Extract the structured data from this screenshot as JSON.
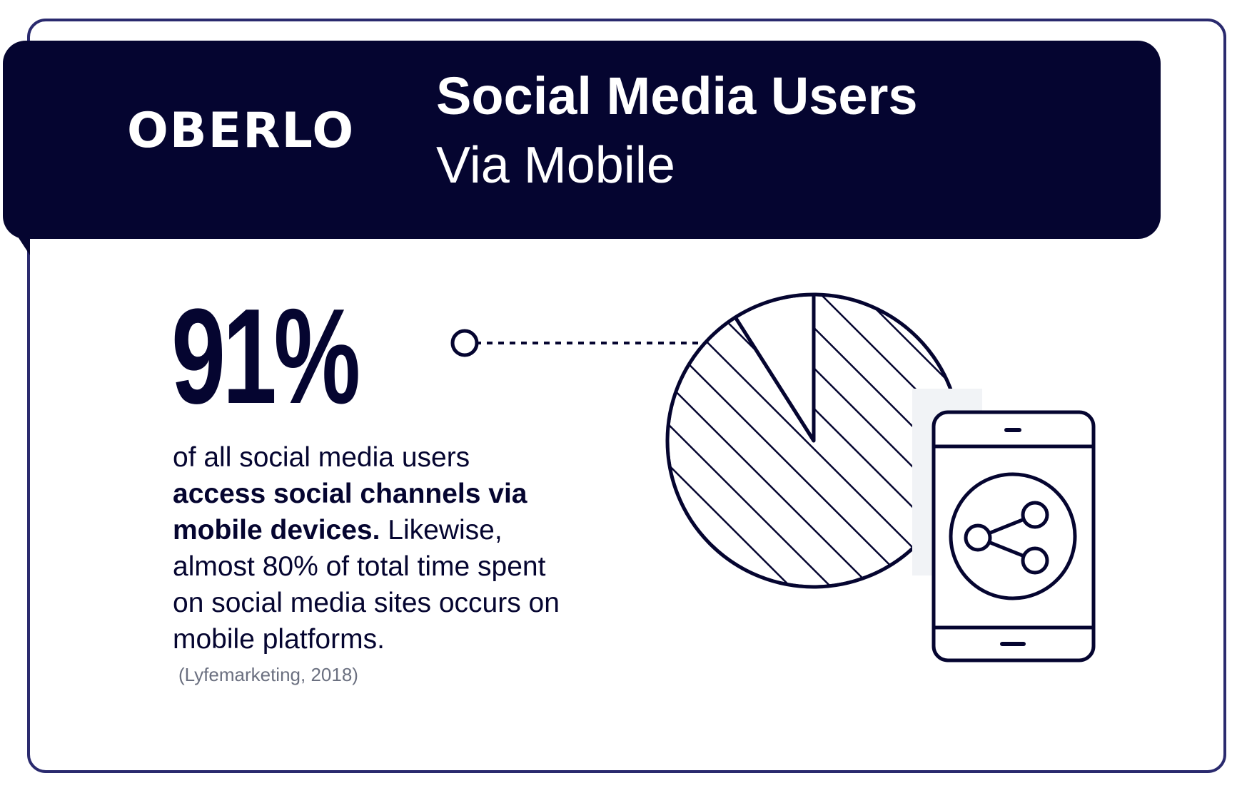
{
  "header": {
    "logo": "OBERLO",
    "title": "Social Media Users",
    "subtitle": "Via Mobile"
  },
  "stat": {
    "value": "91%",
    "line1": "of all social media users",
    "line2_bold": "access social channels via",
    "line3_bold": "mobile devices.",
    "line3_rest": " Likewise,",
    "line4": "almost 80% of total time spent",
    "line5": "on social media sites occurs on",
    "line6": "mobile platforms.",
    "source": "(Lyfemarketing, 2018)"
  },
  "chart_data": {
    "type": "pie",
    "slices": [
      {
        "value": 91,
        "style": "hatched"
      },
      {
        "value": 9,
        "style": "empty"
      }
    ]
  },
  "colors": {
    "navy": "#050530",
    "border": "#2a2a6e",
    "source_gray": "#6b7080"
  },
  "icons": {
    "phone": "smartphone-icon",
    "share": "share-icon"
  }
}
